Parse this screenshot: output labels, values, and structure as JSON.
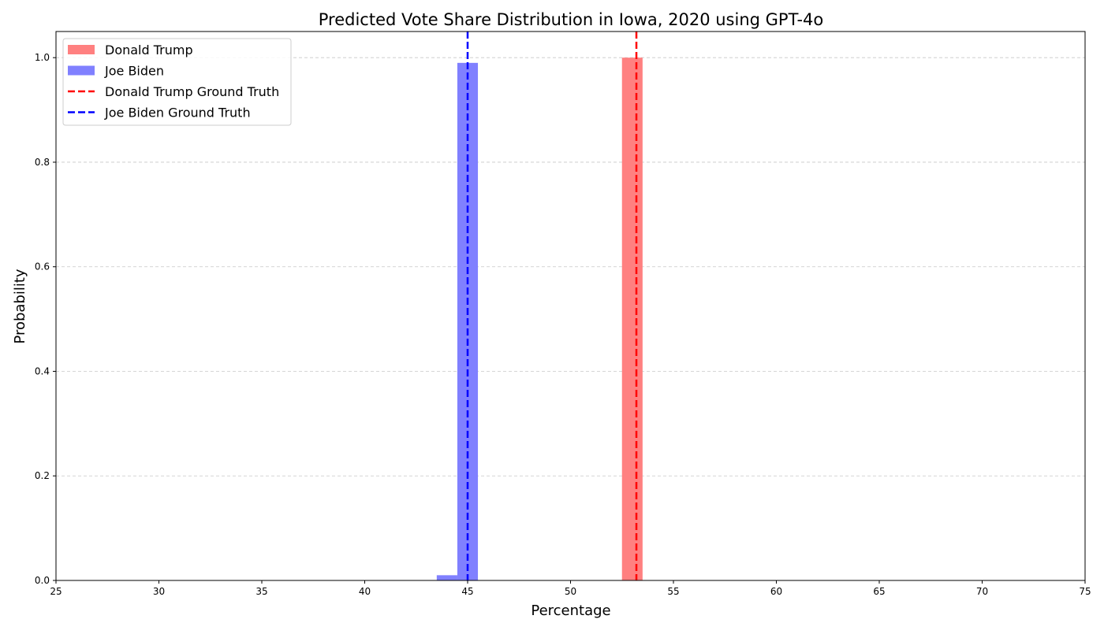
{
  "chart_data": {
    "type": "bar",
    "title": "Predicted Vote Share Distribution in Iowa, 2020 using GPT-4o",
    "xlabel": "Percentage",
    "ylabel": "Probability",
    "xlim": [
      25,
      75
    ],
    "ylim": [
      0,
      1.05
    ],
    "xticks": [
      25,
      30,
      35,
      40,
      45,
      50,
      55,
      60,
      65,
      70,
      75
    ],
    "yticks": [
      0.0,
      0.2,
      0.4,
      0.6,
      0.8,
      1.0
    ],
    "grid": "y-dashed",
    "legend_position": "top-left",
    "bin_width": 1.0,
    "series": [
      {
        "name": "Donald Trump",
        "color": "#ff8080",
        "bins": [
          {
            "start": 52.5,
            "value": 1.0
          }
        ]
      },
      {
        "name": "Joe Biden",
        "color": "#8080ff",
        "bins": [
          {
            "start": 43.5,
            "value": 0.01
          },
          {
            "start": 44.5,
            "value": 0.99
          }
        ]
      }
    ],
    "reference_lines": [
      {
        "name": "Donald Trump Ground Truth",
        "x": 53.2,
        "color": "#ff0000",
        "style": "dashed"
      },
      {
        "name": "Joe Biden Ground Truth",
        "x": 45.0,
        "color": "#0000ff",
        "style": "dashed"
      }
    ]
  }
}
